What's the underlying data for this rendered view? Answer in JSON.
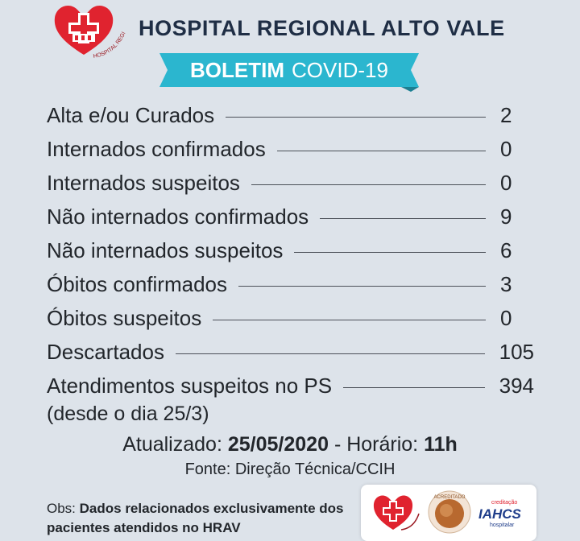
{
  "header": {
    "hospital_name": "HOSPITAL REGIONAL ALTO VALE",
    "logo_caption": "HOSPITAL REGIONAL ALTO VALE"
  },
  "ribbon": {
    "strong": "BOLETIM",
    "rest": "COVID-19"
  },
  "rows": [
    {
      "label": "Alta e/ou Curados",
      "value": "2"
    },
    {
      "label": "Internados confirmados",
      "value": "0"
    },
    {
      "label": "Internados suspeitos",
      "value": "0"
    },
    {
      "label": "Não internados confirmados",
      "value": "9"
    },
    {
      "label": "Não internados suspeitos",
      "value": "6"
    },
    {
      "label": "Óbitos confirmados",
      "value": "3"
    },
    {
      "label": "Óbitos suspeitos",
      "value": "0"
    },
    {
      "label": "Descartados",
      "value": "105"
    },
    {
      "label": "Atendimentos suspeitos no PS",
      "value": "394"
    }
  ],
  "ps_note": "(desde o dia 25/3)",
  "updated": {
    "prefix": "Atualizado:",
    "date": "25/05/2020",
    "time_prefix": " - Horário:",
    "time": "11h"
  },
  "source": "Fonte:  Direção Técnica/CCIH",
  "obs": {
    "prefix": "Obs:",
    "text": "Dados relacionados exclusivamente dos pacientes atendidos no HRAV"
  },
  "badges": {
    "seal_text": "ACREDITADO",
    "iahcs_top": "creditação",
    "iahcs_main": "IAHCS",
    "iahcs_sub": "hospitalar"
  },
  "colors": {
    "accent": "#2bb6cf",
    "brand_red": "#e0232f",
    "title": "#1f2e45",
    "background": "#dde3ea"
  }
}
